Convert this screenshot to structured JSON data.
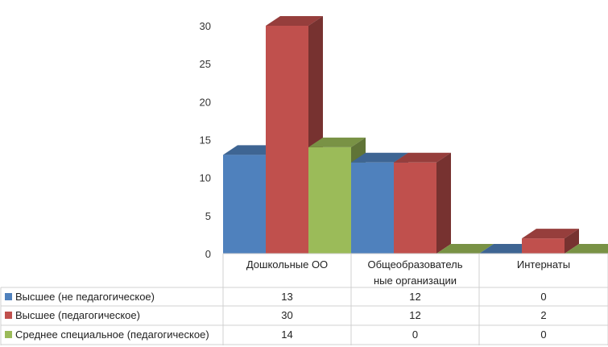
{
  "chart_data": {
    "type": "bar",
    "style": "3d-clustered-column-with-data-table",
    "categories": [
      [
        "Дошкольные ОО"
      ],
      [
        "Общеобразователь",
        "ные организации"
      ],
      [
        "Интернаты"
      ]
    ],
    "series": [
      {
        "name": "Высшее (не педагогическое)",
        "values": [
          13,
          12,
          0
        ],
        "color": "#4F81BD"
      },
      {
        "name": "Высшее (педагогическое)",
        "values": [
          30,
          12,
          2
        ],
        "color": "#C0504D"
      },
      {
        "name": "Среднее специальное (педагогическое)",
        "values": [
          14,
          0,
          0
        ],
        "color": "#9BBB59"
      }
    ],
    "yticks": [
      0,
      5,
      10,
      15,
      20,
      25,
      30
    ],
    "ylim": [
      0,
      30
    ],
    "grid": false,
    "legend": "data-table-left"
  }
}
